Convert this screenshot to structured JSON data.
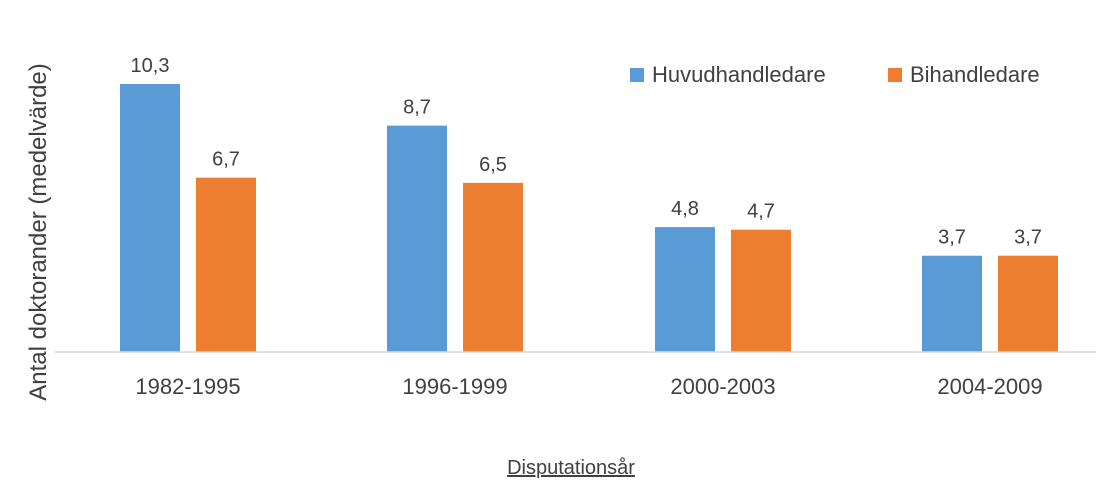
{
  "chart_data": {
    "type": "bar",
    "title": "",
    "xlabel": "Disputationsår",
    "ylabel": "Antal doktorander (medelvärde)",
    "categories": [
      "1982-1995",
      "1996-1999",
      "2000-2003",
      "2004-2009"
    ],
    "series": [
      {
        "name": "Huvudhandledare",
        "values": [
          10.3,
          8.7,
          4.8,
          3.7
        ],
        "labels": [
          "10,3",
          "8,7",
          "4,8",
          "3,7"
        ],
        "color": "#5b9bd5"
      },
      {
        "name": "Bihandledare",
        "values": [
          6.7,
          6.5,
          4.7,
          3.7
        ],
        "labels": [
          "6,7",
          "6,5",
          "4,7",
          "3,7"
        ],
        "color": "#ed7d31"
      }
    ],
    "ylim": [
      0,
      10.3
    ],
    "grid": false,
    "axis_color": "#d9d9d9",
    "legend_position": "top-right"
  }
}
